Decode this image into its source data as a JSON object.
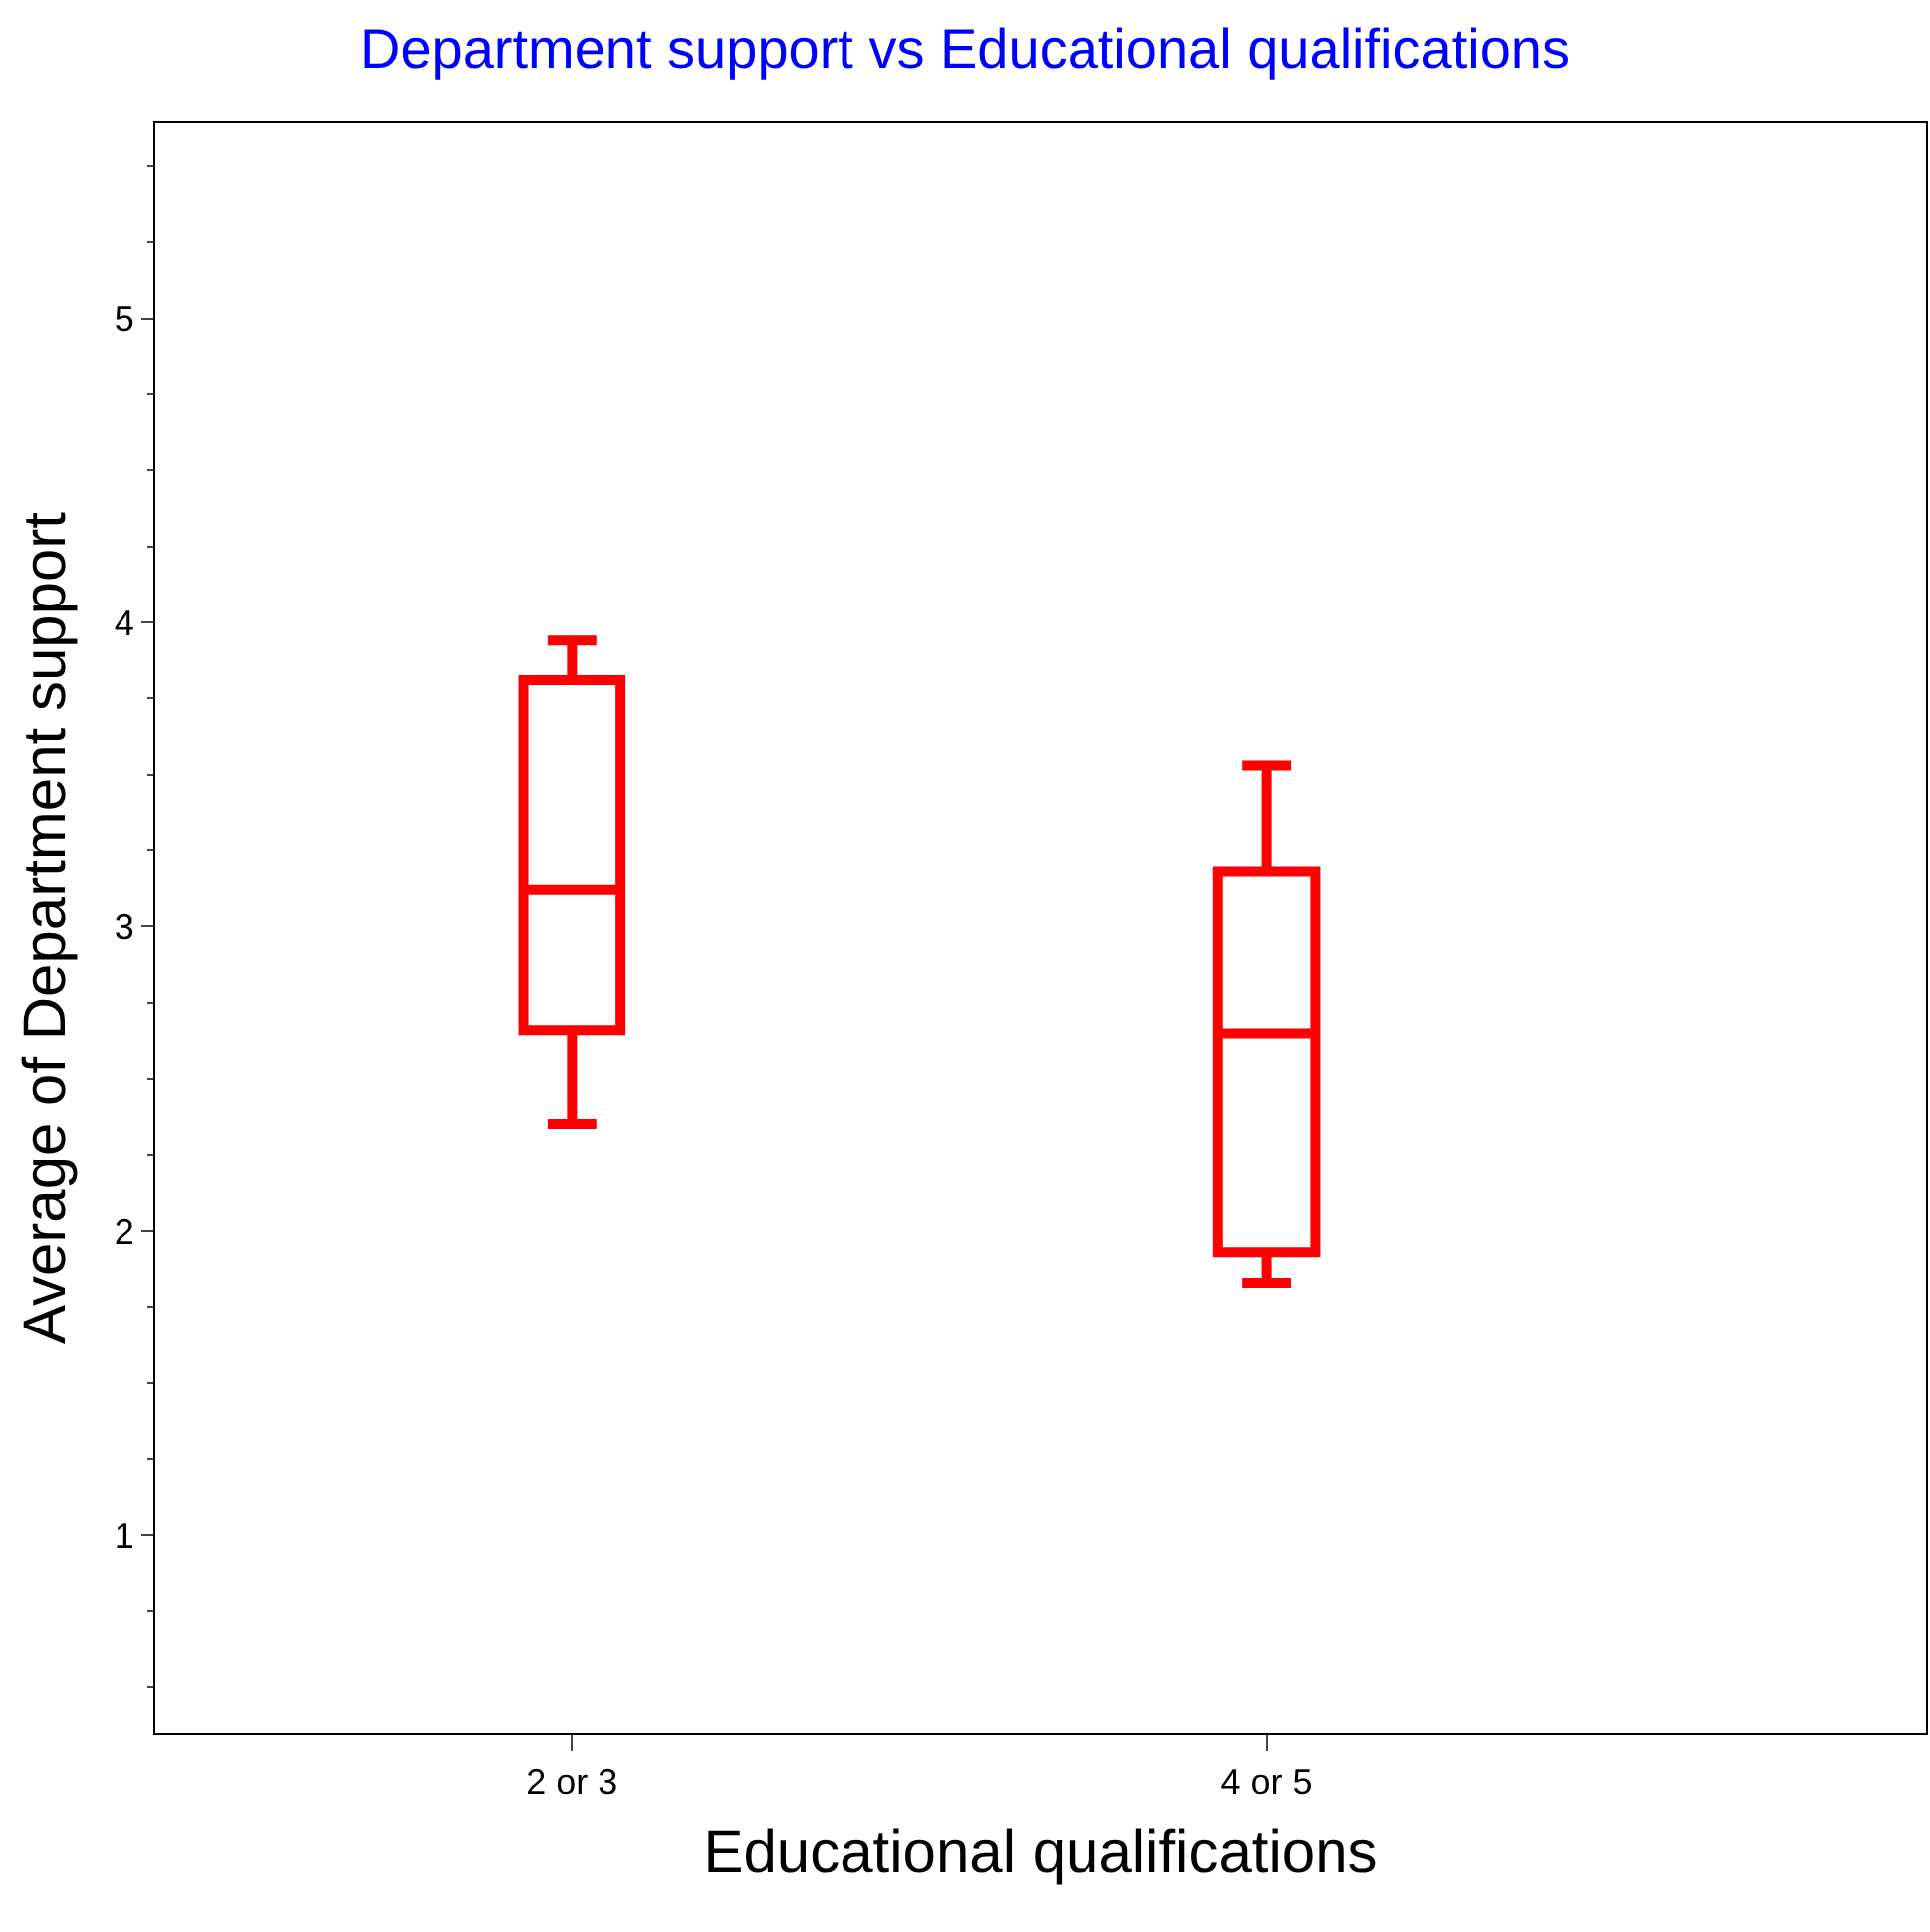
{
  "chart_data": {
    "type": "box",
    "title": "Department support vs Educational qualifications",
    "xlabel": "Educational qualifications",
    "ylabel": "Average of Department support",
    "categories": [
      "2 or 3",
      "4 or 5"
    ],
    "color": "#ff0000",
    "boxes": [
      {
        "low": 2.35,
        "q1": 2.66,
        "median": 3.12,
        "q3": 3.81,
        "high": 3.94
      },
      {
        "low": 1.83,
        "q1": 1.93,
        "median": 2.65,
        "q3": 3.18,
        "high": 3.53
      }
    ],
    "ylim": [
      0.35,
      5.64
    ],
    "yticks": [
      1,
      2,
      3,
      4,
      5
    ]
  }
}
